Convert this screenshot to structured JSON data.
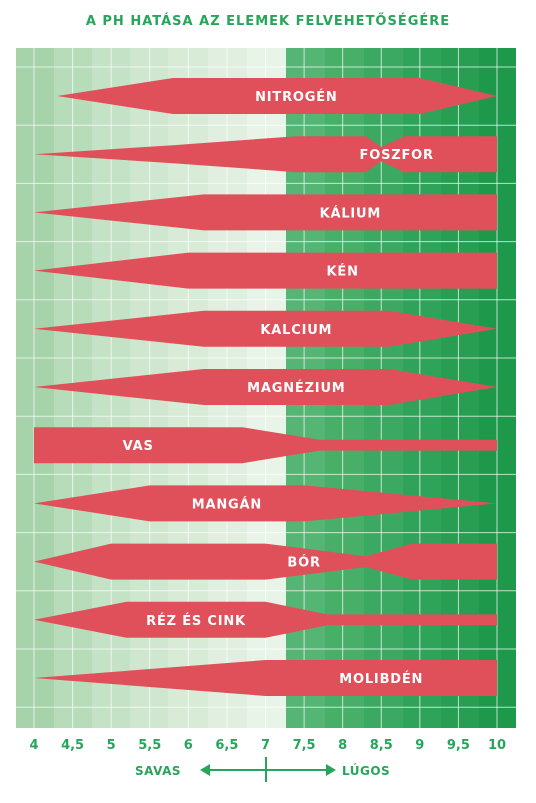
{
  "title": "A PH HATÁSA AZ ELEMEK FELVEHETŐSÉGÉRE",
  "axis": {
    "ticks": [
      "4",
      "4,5",
      "5",
      "5,5",
      "6",
      "6,5",
      "7",
      "7,5",
      "8",
      "8,5",
      "9",
      "9,5",
      "10"
    ],
    "acid_label": "SAVAS",
    "alkaline_label": "LÚGOS"
  },
  "colors": {
    "band_shape": "#e0505a",
    "text_green": "#27a55a",
    "grid_line": "#ffffff",
    "bg_gradient": [
      "#a9d5ad",
      "#c4e2c5",
      "#d6ebd6",
      "#e6f3e6",
      "#4fb370",
      "#38aa5e",
      "#229a4c"
    ]
  },
  "chart_data": {
    "type": "diagram",
    "x_range": [
      4,
      10
    ],
    "elements": [
      {
        "name": "NITROGÉN",
        "profile": [
          [
            4.3,
            0
          ],
          [
            5.8,
            1
          ],
          [
            7.5,
            1
          ],
          [
            9,
            1
          ],
          [
            10,
            0
          ]
        ]
      },
      {
        "name": "FOSZFOR",
        "profile": [
          [
            4.0,
            0
          ],
          [
            5.8,
            0.5
          ],
          [
            7.4,
            1
          ],
          [
            8.3,
            1
          ],
          [
            8.5,
            0.4
          ],
          [
            8.8,
            1
          ],
          [
            10,
            1
          ]
        ]
      },
      {
        "name": "KÁLIUM",
        "profile": [
          [
            4.0,
            0
          ],
          [
            6.2,
            1
          ],
          [
            10,
            1
          ]
        ]
      },
      {
        "name": "KÉN",
        "profile": [
          [
            4.0,
            0
          ],
          [
            6.0,
            1
          ],
          [
            10,
            1
          ]
        ]
      },
      {
        "name": "KALCIUM",
        "profile": [
          [
            4.0,
            0
          ],
          [
            6.2,
            1
          ],
          [
            8.6,
            1
          ],
          [
            10,
            0
          ]
        ]
      },
      {
        "name": "MAGNÉZIUM",
        "profile": [
          [
            4.0,
            0
          ],
          [
            6.2,
            1
          ],
          [
            8.6,
            1
          ],
          [
            10,
            0
          ]
        ]
      },
      {
        "name": "VAS",
        "profile": [
          [
            4.0,
            1
          ],
          [
            6.7,
            1
          ],
          [
            7.7,
            0.3
          ],
          [
            10,
            0.3
          ]
        ]
      },
      {
        "name": "MANGÁN",
        "profile": [
          [
            4.0,
            0
          ],
          [
            5.5,
            1
          ],
          [
            7.5,
            1
          ],
          [
            10,
            0
          ]
        ]
      },
      {
        "name": "BÓR",
        "profile": [
          [
            4.0,
            0
          ],
          [
            5.0,
            1
          ],
          [
            7.0,
            1
          ],
          [
            8.3,
            0.3
          ],
          [
            8.9,
            1
          ],
          [
            10,
            1
          ]
        ]
      },
      {
        "name": "RÉZ ÉS CINK",
        "profile": [
          [
            4.0,
            0
          ],
          [
            5.2,
            1
          ],
          [
            7.0,
            1
          ],
          [
            7.8,
            0.3
          ],
          [
            10,
            0.3
          ]
        ]
      },
      {
        "name": "MOLIBDÉN",
        "profile": [
          [
            4.0,
            0
          ],
          [
            7.0,
            1
          ],
          [
            10,
            1
          ]
        ]
      }
    ]
  }
}
